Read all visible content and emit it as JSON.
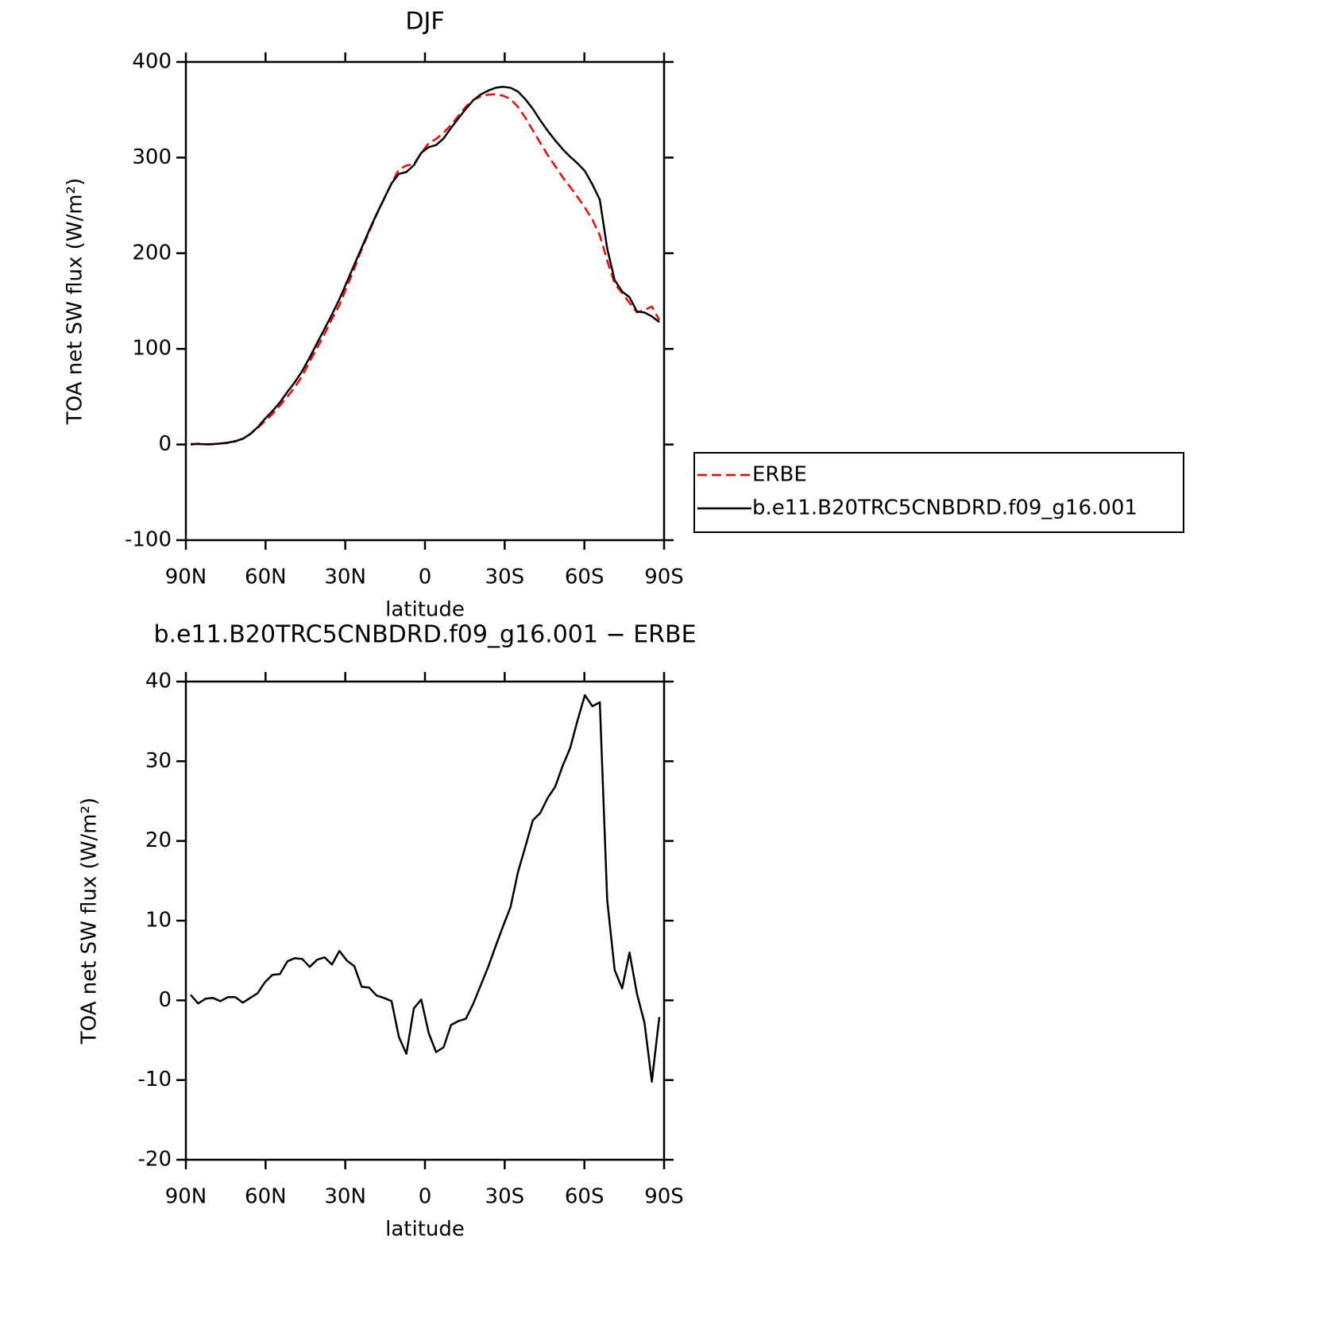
{
  "chart_data": [
    {
      "type": "line",
      "title": "DJF",
      "xlabel": "latitude",
      "ylabel": "TOA net SW flux (W/m²)",
      "xlim": [
        90,
        -90
      ],
      "xticks": [
        {
          "value": 90,
          "label": "90N"
        },
        {
          "value": 60,
          "label": "60N"
        },
        {
          "value": 30,
          "label": "30N"
        },
        0,
        {
          "value": -30,
          "label": "30S"
        },
        {
          "value": -60,
          "label": "60S"
        },
        {
          "value": -90,
          "label": "90S"
        }
      ],
      "ylim": [
        -100,
        400
      ],
      "yticks": [
        -100,
        0,
        100,
        200,
        300,
        400
      ],
      "legend": "right",
      "x": [
        88.2,
        85.4,
        82.6,
        79.8,
        77.0,
        74.2,
        71.4,
        68.6,
        65.8,
        63.0,
        60.2,
        57.4,
        54.6,
        51.8,
        49.0,
        46.2,
        43.4,
        40.6,
        37.8,
        35.0,
        32.2,
        29.4,
        26.6,
        23.8,
        21.0,
        18.2,
        15.4,
        12.6,
        9.8,
        7.0,
        4.2,
        1.4,
        -1.4,
        -4.2,
        -7.0,
        -9.8,
        -12.6,
        -15.4,
        -18.2,
        -21.0,
        -23.8,
        -26.6,
        -29.4,
        -32.2,
        -35.0,
        -37.8,
        -40.6,
        -43.4,
        -46.2,
        -49.0,
        -51.8,
        -54.6,
        -57.4,
        -60.2,
        -63.0,
        -65.8,
        -68.6,
        -71.4,
        -74.2,
        -77.0,
        -79.8,
        -82.6,
        -85.4,
        -88.2
      ],
      "series": [
        {
          "name": "ERBE",
          "color": "#ff0000",
          "linestyle": "dashed",
          "values": [
            -0.2,
            0.9,
            0.1,
            0.2,
            1.1,
            1.6,
            3.1,
            6.3,
            10.7,
            17.1,
            24.7,
            31.8,
            40.7,
            50.1,
            59.7,
            71.8,
            86.8,
            100.9,
            115.6,
            131.5,
            145.8,
            165,
            183.7,
            204.3,
            222.4,
            240.4,
            256.7,
            273.1,
            287.6,
            291.7,
            293,
            304.9,
            315.1,
            319.5,
            325.9,
            334.1,
            343.6,
            353.3,
            360.4,
            364.1,
            365.8,
            366.2,
            364.7,
            361.3,
            352.9,
            341.7,
            328.4,
            315.5,
            302.6,
            291.2,
            279.6,
            269.4,
            258.9,
            247.7,
            235.1,
            218.6,
            192.4,
            168.2,
            158.5,
            148,
            138.2,
            140.8,
            144.2,
            130.1
          ]
        },
        {
          "name": "b.e11.B20TRC5CNBDRD.f09_g16.001",
          "color": "#000000",
          "linestyle": "solid",
          "values": [
            0.5,
            0.5,
            0.3,
            0.5,
            1,
            2,
            3.5,
            6,
            11,
            18,
            27,
            35,
            44,
            55,
            65,
            77,
            91,
            106,
            121,
            136,
            152,
            170,
            188,
            206,
            224,
            241,
            257,
            273,
            283,
            285,
            292,
            305,
            311,
            313,
            320,
            331,
            341,
            351,
            360,
            366,
            370,
            373,
            374,
            373,
            369,
            361,
            351,
            339,
            328,
            318,
            309,
            301,
            294,
            286,
            272,
            256,
            205,
            172,
            160,
            154,
            139,
            138,
            134,
            128
          ]
        }
      ]
    },
    {
      "type": "line",
      "title": "b.e11.B20TRC5CNBDRD.f09_g16.001 − ERBE",
      "xlabel": "latitude",
      "ylabel": "TOA net SW flux (W/m²)",
      "xlim": [
        90,
        -90
      ],
      "xticks": [
        {
          "value": 90,
          "label": "90N"
        },
        {
          "value": 60,
          "label": "60N"
        },
        {
          "value": 30,
          "label": "30N"
        },
        0,
        {
          "value": -30,
          "label": "30S"
        },
        {
          "value": -60,
          "label": "60S"
        },
        {
          "value": -90,
          "label": "90S"
        }
      ],
      "ylim": [
        -20,
        40
      ],
      "yticks": [
        -20,
        -10,
        0,
        10,
        20,
        30,
        40
      ],
      "x": [
        88.2,
        85.4,
        82.6,
        79.8,
        77.0,
        74.2,
        71.4,
        68.6,
        65.8,
        63.0,
        60.2,
        57.4,
        54.6,
        51.8,
        49.0,
        46.2,
        43.4,
        40.6,
        37.8,
        35.0,
        32.2,
        29.4,
        26.6,
        23.8,
        21.0,
        18.2,
        15.4,
        12.6,
        9.8,
        7.0,
        4.2,
        1.4,
        -1.4,
        -4.2,
        -7.0,
        -9.8,
        -12.6,
        -15.4,
        -18.2,
        -21.0,
        -23.8,
        -26.6,
        -29.4,
        -32.2,
        -35.0,
        -37.8,
        -40.6,
        -43.4,
        -46.2,
        -49.0,
        -51.8,
        -54.6,
        -57.4,
        -60.2,
        -63.0,
        -65.8,
        -68.6,
        -71.4,
        -74.2,
        -77.0,
        -79.8,
        -82.6,
        -85.4,
        -88.2
      ],
      "series": [
        {
          "color": "#000000",
          "linestyle": "solid",
          "values": [
            0.7,
            -0.4,
            0.2,
            0.3,
            -0.1,
            0.4,
            0.4,
            -0.3,
            0.3,
            0.9,
            2.3,
            3.2,
            3.3,
            4.9,
            5.3,
            5.2,
            4.2,
            5.1,
            5.4,
            4.5,
            6.2,
            5.0,
            4.3,
            1.7,
            1.6,
            0.6,
            0.3,
            -0.1,
            -4.6,
            -6.7,
            -1.0,
            0.1,
            -4.1,
            -6.5,
            -5.9,
            -3.1,
            -2.6,
            -2.3,
            -0.4,
            1.9,
            4.2,
            6.8,
            9.3,
            11.7,
            16.1,
            19.3,
            22.6,
            23.5,
            25.4,
            26.8,
            29.4,
            31.6,
            35.1,
            38.3,
            36.9,
            37.4,
            12.6,
            3.8,
            1.5,
            6.0,
            0.8,
            -2.8,
            -10.2,
            -2.1
          ]
        }
      ]
    }
  ]
}
